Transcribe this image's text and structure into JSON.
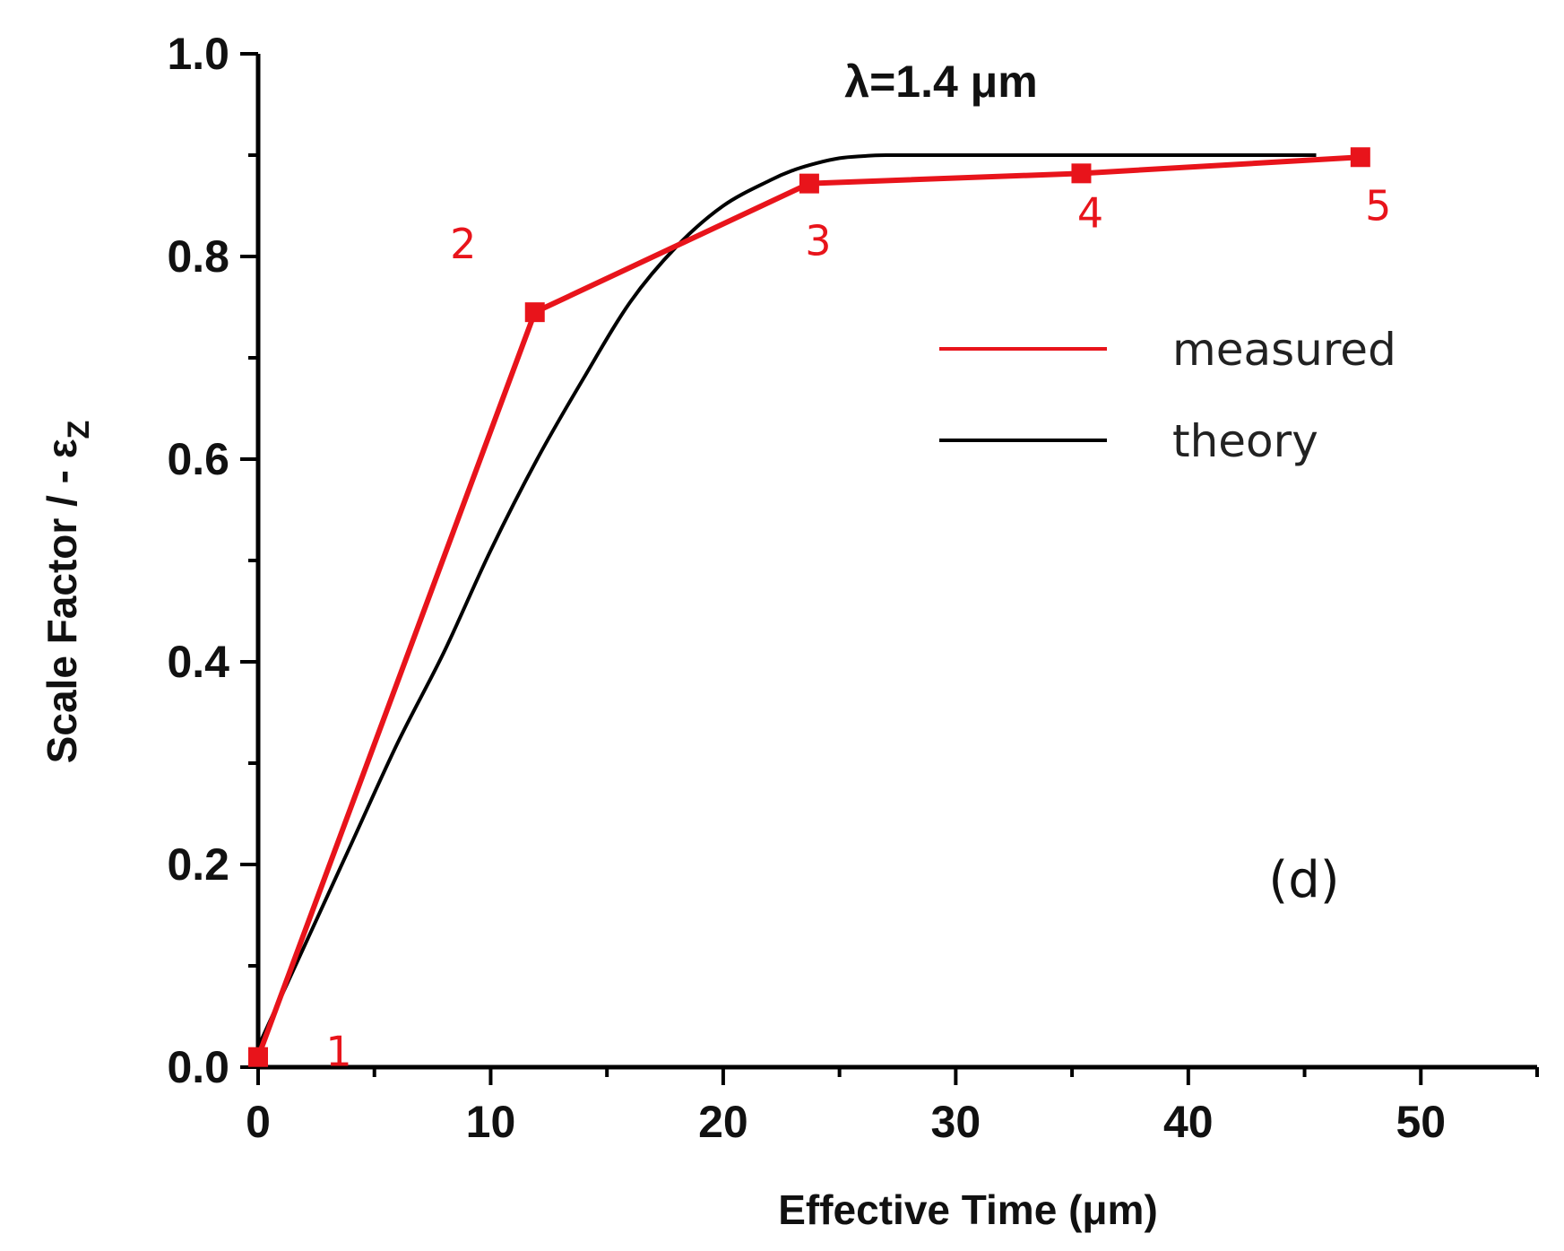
{
  "chart_data": {
    "type": "line",
    "title": "λ=1.4 μm",
    "panel_label": "(d)",
    "xlabel": "Effective Time (μm)",
    "ylabel": "Scale Factor / - ε",
    "ylabel_subscript": "Z",
    "xlim": [
      0,
      55
    ],
    "ylim": [
      0,
      1.0
    ],
    "x_ticks": [
      0,
      10,
      20,
      30,
      40,
      50
    ],
    "x_tick_labels": [
      "0",
      "10",
      "20",
      "30",
      "40",
      "50"
    ],
    "y_ticks": [
      0.0,
      0.2,
      0.4,
      0.6,
      0.8,
      1.0
    ],
    "y_tick_labels": [
      "0.0",
      "0.2",
      "0.4",
      "0.6",
      "0.8",
      "1.0"
    ],
    "legend_position": "right",
    "series": [
      {
        "name": "measured",
        "color": "#e8141b",
        "marker": "square",
        "x": [
          0,
          11.9,
          23.7,
          35.4,
          47.4
        ],
        "y": [
          0.01,
          0.745,
          0.872,
          0.882,
          0.898
        ],
        "point_labels": [
          "1",
          "2",
          "3",
          "4",
          "5"
        ]
      },
      {
        "name": "theory",
        "color": "#000000",
        "marker": "none",
        "x": [
          0,
          2,
          4,
          6,
          8,
          10,
          12,
          14,
          16,
          18,
          20,
          22,
          23,
          24,
          25,
          26,
          27,
          30,
          35,
          40,
          45.5
        ],
        "y": [
          0.02,
          0.12,
          0.22,
          0.32,
          0.41,
          0.51,
          0.6,
          0.68,
          0.755,
          0.81,
          0.85,
          0.875,
          0.885,
          0.892,
          0.897,
          0.899,
          0.9,
          0.9,
          0.9,
          0.9,
          0.9
        ]
      }
    ]
  }
}
